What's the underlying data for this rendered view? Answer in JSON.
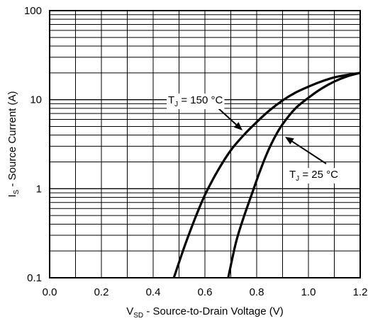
{
  "chart_data": {
    "type": "line",
    "scale": {
      "x": "linear",
      "y": "log"
    },
    "xlim": [
      0.0,
      1.2
    ],
    "ylim": [
      0.1,
      100
    ],
    "grid": true,
    "x_ticks": [
      "0.0",
      "0.2",
      "0.4",
      "0.6",
      "0.8",
      "1.0",
      "1.2"
    ],
    "y_ticks": [
      "0.1",
      "1",
      "10",
      "100"
    ],
    "xlabel": {
      "main": "V",
      "sub": "SD",
      "rest": " - Source-to-Drain Voltage (V)"
    },
    "ylabel": {
      "main": "I",
      "sub": "S",
      "rest": " - Source Current (A)"
    },
    "series": [
      {
        "label_main": "T",
        "label_sub": "J",
        "label_rest": " = 150 °C",
        "points": [
          [
            0.48,
            0.1
          ],
          [
            0.52,
            0.22
          ],
          [
            0.56,
            0.45
          ],
          [
            0.6,
            0.85
          ],
          [
            0.65,
            1.6
          ],
          [
            0.7,
            2.7
          ],
          [
            0.75,
            4.0
          ],
          [
            0.8,
            5.6
          ],
          [
            0.85,
            7.6
          ],
          [
            0.9,
            9.8
          ],
          [
            0.95,
            12.0
          ],
          [
            1.0,
            14.0
          ],
          [
            1.05,
            16.0
          ],
          [
            1.1,
            17.8
          ],
          [
            1.15,
            19.0
          ],
          [
            1.2,
            20.0
          ]
        ]
      },
      {
        "label_main": "T",
        "label_sub": "J",
        "label_rest": " = 25 °C",
        "points": [
          [
            0.69,
            0.1
          ],
          [
            0.72,
            0.25
          ],
          [
            0.75,
            0.48
          ],
          [
            0.78,
            0.85
          ],
          [
            0.81,
            1.5
          ],
          [
            0.84,
            2.5
          ],
          [
            0.87,
            3.8
          ],
          [
            0.9,
            5.3
          ],
          [
            0.95,
            8.0
          ],
          [
            1.0,
            10.5
          ],
          [
            1.05,
            13.3
          ],
          [
            1.1,
            16.0
          ],
          [
            1.15,
            18.3
          ],
          [
            1.2,
            20.0
          ]
        ]
      }
    ]
  }
}
